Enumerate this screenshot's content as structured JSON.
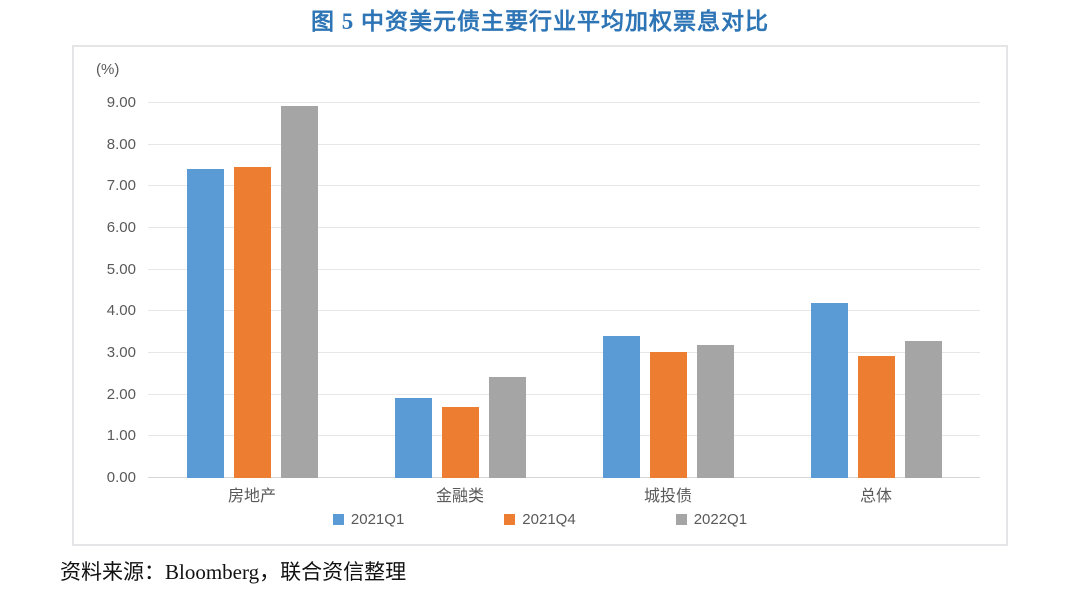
{
  "figure": {
    "title": "图 5 中资美元债主要行业平均加权票息对比",
    "source": "资料来源：Bloomberg，联合资信整理"
  },
  "chart_data": {
    "type": "bar",
    "title": "图 5 中资美元债主要行业平均加权票息对比",
    "unit_label": "(%)",
    "categories": [
      "房地产",
      "金融类",
      "城投债",
      "总体"
    ],
    "series": [
      {
        "name": "2021Q1",
        "color": "#5B9BD5",
        "values": [
          7.42,
          1.93,
          3.4,
          4.19
        ]
      },
      {
        "name": "2021Q4",
        "color": "#ED7D31",
        "values": [
          7.47,
          1.7,
          3.03,
          2.92
        ]
      },
      {
        "name": "2022Q1",
        "color": "#A5A5A5",
        "values": [
          8.94,
          2.43,
          3.2,
          3.28
        ]
      }
    ],
    "ylim": [
      0,
      9
    ],
    "ytick_step": 1,
    "yticks": [
      "0.00",
      "1.00",
      "2.00",
      "3.00",
      "4.00",
      "5.00",
      "6.00",
      "7.00",
      "8.00",
      "9.00"
    ],
    "grid": true,
    "legend_position": "bottom",
    "source": "资料来源：Bloomberg，联合资信整理"
  },
  "colors": {
    "title_blue": "#2E75B6",
    "axis_text": "#595959",
    "gridline": "#E7E7E7",
    "chart_border": "#E5E5E7"
  }
}
